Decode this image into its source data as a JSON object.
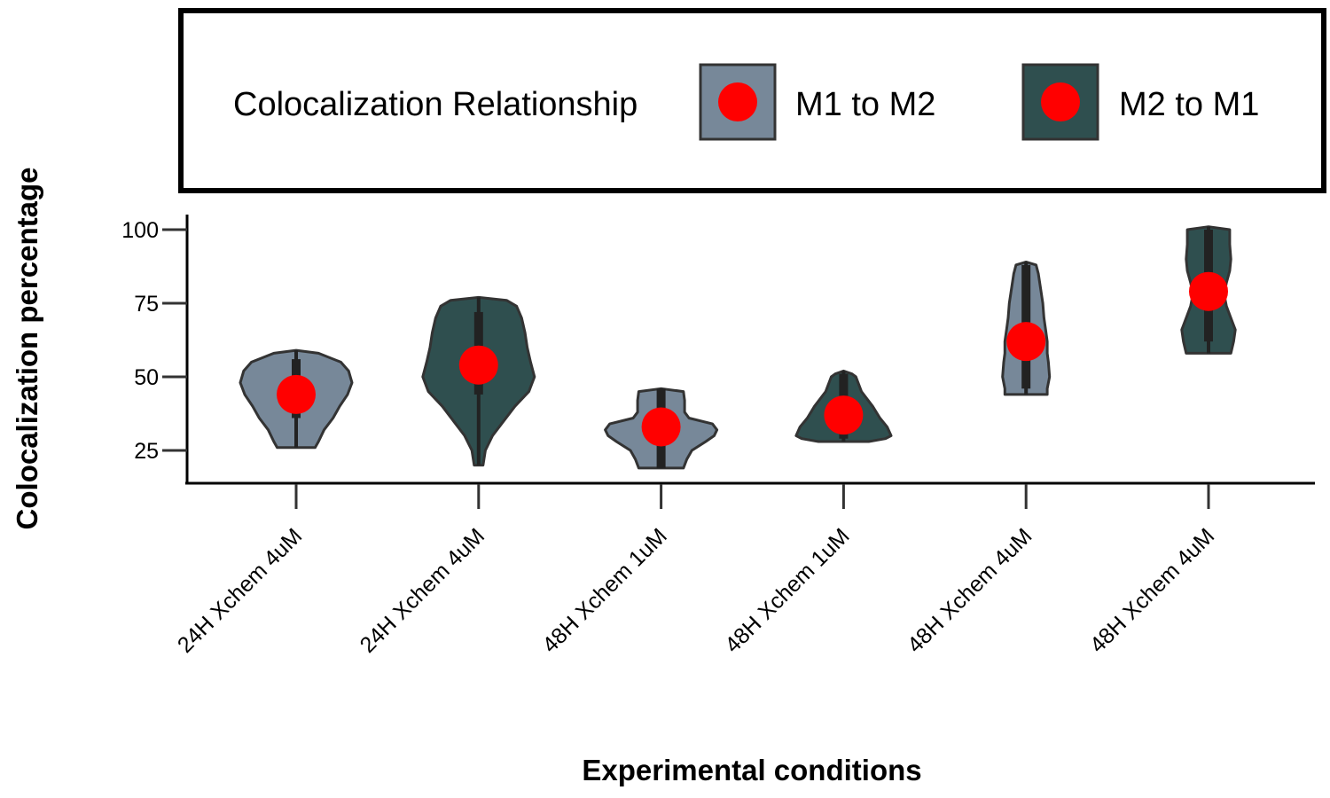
{
  "chart_data": {
    "type": "violin",
    "xlabel": "Experimental conditions",
    "ylabel": "Colocalization percentage",
    "ylim": [
      14,
      104
    ],
    "yticks": [
      25,
      50,
      75,
      100
    ],
    "grid": false,
    "legend": {
      "title": "Colocalization Relationship",
      "position": "top",
      "items": [
        {
          "label": "M1 to M2",
          "fill": "#778899"
        },
        {
          "label": "M2 to M1",
          "fill": "#2f4f4f"
        }
      ]
    },
    "point_color": "#ff0000",
    "categories": [
      "24H Xchem 4uM",
      "24H Xchem 4uM",
      "48H Xchem 1uM",
      "48H Xchem 1uM",
      "48H Xchem 4uM",
      "48H Xchem 4uM"
    ],
    "violins": [
      {
        "category": "24H Xchem 4uM",
        "series": "M1 to M2",
        "min": 26,
        "max": 59,
        "mean": 44,
        "box": [
          36,
          56
        ],
        "profile": [
          [
            26,
            0.34
          ],
          [
            28,
            0.4
          ],
          [
            32,
            0.5
          ],
          [
            36,
            0.66
          ],
          [
            40,
            0.78
          ],
          [
            44,
            0.92
          ],
          [
            48,
            1.0
          ],
          [
            52,
            0.94
          ],
          [
            55,
            0.8
          ],
          [
            58,
            0.4
          ],
          [
            59,
            0.0
          ]
        ]
      },
      {
        "category": "24H Xchem 4uM",
        "series": "M2 to M1",
        "min": 20,
        "max": 77,
        "mean": 54,
        "box": [
          44,
          72
        ],
        "profile": [
          [
            20,
            0.08
          ],
          [
            25,
            0.12
          ],
          [
            30,
            0.25
          ],
          [
            35,
            0.45
          ],
          [
            40,
            0.65
          ],
          [
            45,
            0.9
          ],
          [
            50,
            1.0
          ],
          [
            55,
            0.93
          ],
          [
            60,
            0.87
          ],
          [
            65,
            0.83
          ],
          [
            70,
            0.77
          ],
          [
            74,
            0.68
          ],
          [
            76,
            0.5
          ],
          [
            77,
            0.0
          ]
        ]
      },
      {
        "category": "48H Xchem 1uM",
        "series": "M1 to M2",
        "min": 19,
        "max": 46,
        "mean": 33,
        "box": [
          19,
          46
        ],
        "profile": [
          [
            19,
            0.4
          ],
          [
            22,
            0.46
          ],
          [
            25,
            0.55
          ],
          [
            28,
            0.8
          ],
          [
            30,
            0.95
          ],
          [
            32,
            1.0
          ],
          [
            34,
            0.92
          ],
          [
            36,
            0.5
          ],
          [
            38,
            0.42
          ],
          [
            42,
            0.42
          ],
          [
            45,
            0.4
          ],
          [
            46,
            0.0
          ]
        ]
      },
      {
        "category": "48H Xchem 1uM",
        "series": "M2 to M1",
        "min": 28,
        "max": 52,
        "mean": 37,
        "box": [
          29,
          51
        ],
        "profile": [
          [
            28,
            0.45
          ],
          [
            29,
            0.75
          ],
          [
            30,
            0.85
          ],
          [
            33,
            0.78
          ],
          [
            36,
            0.65
          ],
          [
            40,
            0.52
          ],
          [
            45,
            0.32
          ],
          [
            50,
            0.22
          ],
          [
            51,
            0.15
          ],
          [
            52,
            0.0
          ]
        ]
      },
      {
        "category": "48H Xchem 4uM",
        "series": "M1 to M2",
        "min": 44,
        "max": 89,
        "mean": 62,
        "box": [
          46,
          88
        ],
        "profile": [
          [
            44,
            0.38
          ],
          [
            46,
            0.38
          ],
          [
            50,
            0.42
          ],
          [
            55,
            0.4
          ],
          [
            58,
            0.38
          ],
          [
            62,
            0.38
          ],
          [
            66,
            0.35
          ],
          [
            70,
            0.32
          ],
          [
            75,
            0.3
          ],
          [
            80,
            0.26
          ],
          [
            85,
            0.22
          ],
          [
            88,
            0.18
          ],
          [
            89,
            0.0
          ]
        ]
      },
      {
        "category": "48H Xchem 4uM",
        "series": "M2 to M1",
        "min": 58,
        "max": 101,
        "mean": 79,
        "box": [
          62,
          100
        ],
        "profile": [
          [
            58,
            0.4
          ],
          [
            62,
            0.45
          ],
          [
            66,
            0.48
          ],
          [
            70,
            0.4
          ],
          [
            74,
            0.32
          ],
          [
            78,
            0.28
          ],
          [
            82,
            0.32
          ],
          [
            86,
            0.38
          ],
          [
            90,
            0.4
          ],
          [
            95,
            0.38
          ],
          [
            100,
            0.38
          ],
          [
            101,
            0.0
          ]
        ]
      }
    ]
  }
}
